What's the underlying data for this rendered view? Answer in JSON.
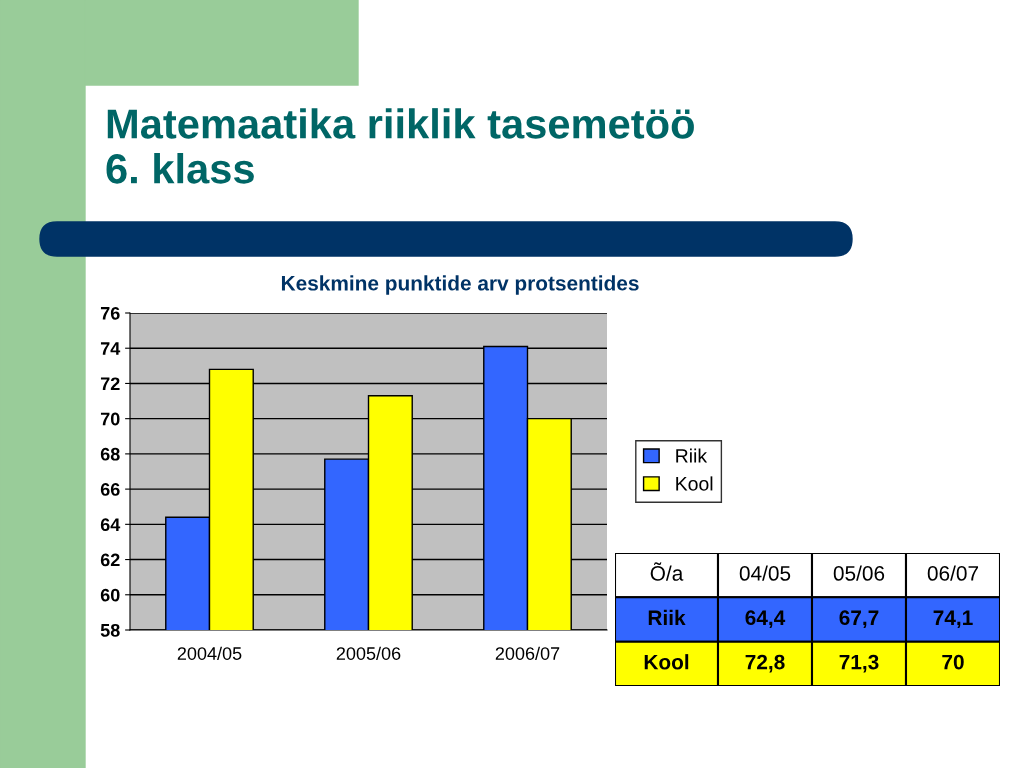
{
  "chart_data": {
    "type": "bar",
    "title": "Matemaatika riiklik tasemetöö\n6. klass",
    "subtitle": "Keskmine punktide arv protsentides",
    "categories": [
      "2004/05",
      "2005/06",
      "2006/07"
    ],
    "series": [
      {
        "name": "Riik",
        "color": "#3366ff",
        "values": [
          64.4,
          67.7,
          74.1
        ]
      },
      {
        "name": "Kool",
        "color": "#ffff00",
        "values": [
          72.8,
          71.3,
          70
        ]
      }
    ],
    "annotations": [
      "Õ/a",
      "04/05",
      "05/06",
      "06/07",
      "Riik",
      "64,4",
      "67,7",
      "74,1",
      "Kool",
      "72,8",
      "71,3",
      "70"
    ],
    "ylim": [
      58,
      76
    ],
    "yticks": [
      58,
      60,
      62,
      64,
      66,
      68,
      70,
      72,
      74,
      76
    ],
    "grid": "y",
    "legend": "right"
  }
}
